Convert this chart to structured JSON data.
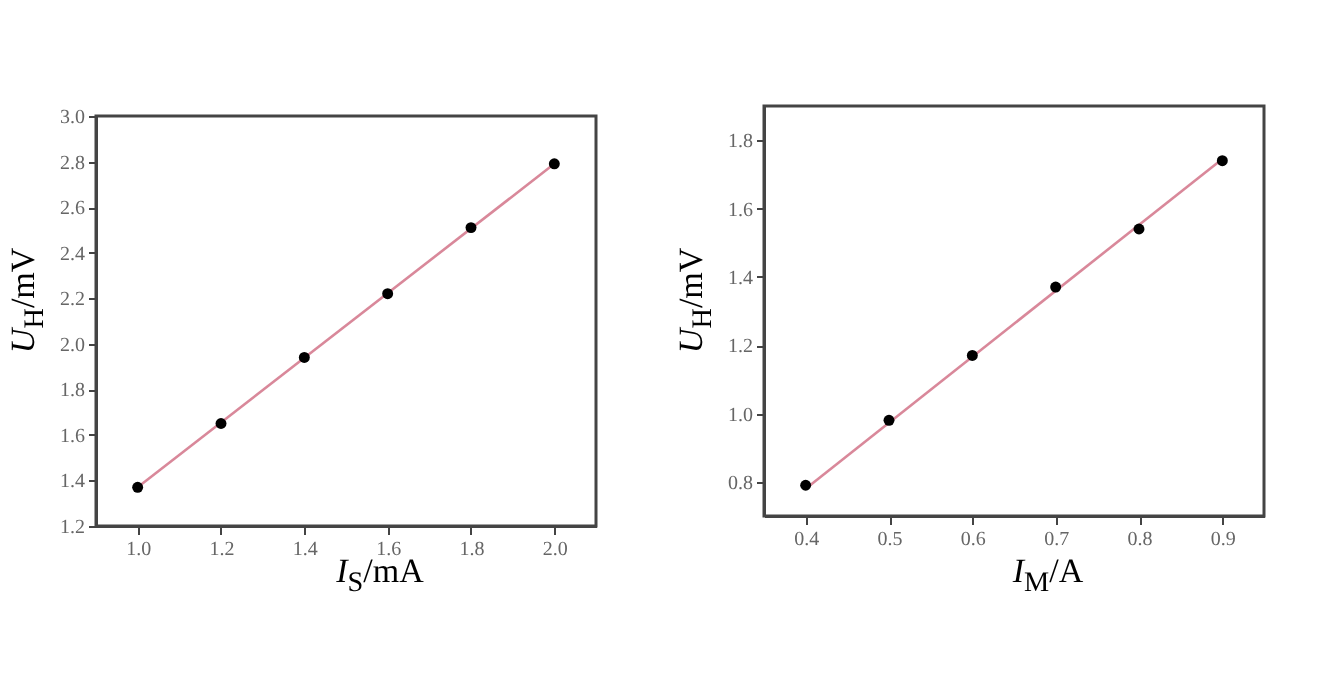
{
  "chart_data": [
    {
      "type": "scatter",
      "xlabel": "I$_{S}$/mA",
      "ylabel": "U$_{H}$/mV",
      "xlim": [
        0.9,
        2.1
      ],
      "xticks": [
        {
          "value": 1,
          "label": "1.0"
        },
        1.2,
        1.4,
        1.6,
        1.8,
        {
          "value": 2,
          "label": "2.0"
        }
      ],
      "ylim": [
        1.2,
        3.0
      ],
      "yticks": [
        1.2,
        1.4,
        1.6,
        1.8,
        {
          "value": 2,
          "label": "2.0"
        },
        2.2,
        2.4,
        2.6,
        2.8,
        {
          "value": 3,
          "label": "3.0"
        }
      ],
      "grid": false,
      "series": [
        {
          "type": "scatter",
          "marker": "circle",
          "color": "#000000",
          "x": [
            1.0,
            1.2,
            1.4,
            1.6,
            1.8,
            2.0
          ],
          "values": [
            1.37,
            1.65,
            1.94,
            2.22,
            2.51,
            2.79
          ]
        },
        {
          "type": "line",
          "color": "#d9889a",
          "x": [
            1.0,
            2.0
          ],
          "values": [
            1.37,
            2.79
          ]
        }
      ]
    },
    {
      "type": "scatter",
      "xlabel": "I$_{M}$/A",
      "ylabel": "U$_{H}$/mV",
      "xlim": [
        0.35,
        0.95
      ],
      "xticks": [
        0.4,
        0.5,
        0.6,
        0.7,
        0.8,
        0.9
      ],
      "ylim": [
        0.7,
        1.9
      ],
      "yticks": [
        0.8,
        {
          "value": 1,
          "label": "1.0"
        },
        1.2,
        1.4,
        1.6,
        1.8
      ],
      "grid": false,
      "series": [
        {
          "type": "scatter",
          "marker": "circle",
          "color": "#000000",
          "x": [
            0.4,
            0.5,
            0.6,
            0.7,
            0.8,
            0.9
          ],
          "values": [
            0.79,
            0.98,
            1.17,
            1.37,
            1.54,
            1.74
          ]
        },
        {
          "type": "line",
          "color": "#d9889a",
          "x": [
            0.4,
            0.9
          ],
          "values": [
            0.78,
            1.745
          ]
        }
      ]
    }
  ]
}
